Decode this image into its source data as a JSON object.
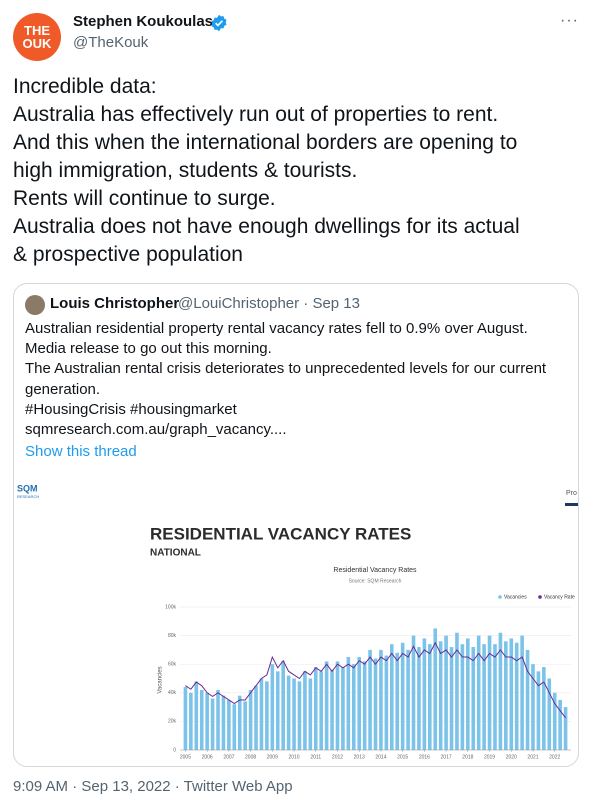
{
  "tweet": {
    "avatar_text": [
      "THE",
      "OUK"
    ],
    "name": "Stephen Koukoulas",
    "handle": "@TheKouk",
    "text_lines": [
      "Incredible data:",
      "Australia has effectively run out of properties to rent.",
      "And this when the international borders are opening to",
      "high immigration, students & tourists.",
      "Rents will continue to surge.",
      "Australia does not have enough dwellings for its actual",
      "& prospective population"
    ],
    "footer": "9:09 AM · Sep 13, 2022 · Twitter Web App"
  },
  "quoted": {
    "name": "Louis Christopher",
    "meta": "@LouiChristopher · Sep 13",
    "text_lines": [
      "Australian residential property rental vacancy rates fell to 0.9% over August.",
      "Media release to go out this morning.",
      "The Australian rental crisis deteriorates to unprecedented levels for our current",
      "generation.",
      "#HousingCrisis #housingmarket",
      "sqmresearch.com.au/graph_vacancy...."
    ],
    "show_thread": "Show this thread"
  },
  "image": {
    "logo": "SQM",
    "logo_sub": "RESEARCH",
    "corner_text": "Pro",
    "heading": "RESIDENTIAL VACANCY RATES",
    "subheading": "NATIONAL"
  },
  "chart_data": {
    "type": "bar-line",
    "title": "Residential Vacancy Rates",
    "subtitle": "Source: SQM Research",
    "y_label": "Vacancies",
    "legend": "top-right",
    "x": [
      2005,
      2005.25,
      2005.5,
      2005.75,
      2006,
      2006.25,
      2006.5,
      2006.75,
      2007,
      2007.25,
      2007.5,
      2007.75,
      2008,
      2008.25,
      2008.5,
      2008.75,
      2009,
      2009.25,
      2009.5,
      2009.75,
      2010,
      2010.25,
      2010.5,
      2010.75,
      2011,
      2011.25,
      2011.5,
      2011.75,
      2012,
      2012.25,
      2012.5,
      2012.75,
      2013,
      2013.25,
      2013.5,
      2013.75,
      2014,
      2014.25,
      2014.5,
      2014.75,
      2015,
      2015.25,
      2015.5,
      2015.75,
      2016,
      2016.25,
      2016.5,
      2016.75,
      2017,
      2017.25,
      2017.5,
      2017.75,
      2018,
      2018.25,
      2018.5,
      2018.75,
      2019,
      2019.25,
      2019.5,
      2019.75,
      2020,
      2020.25,
      2020.5,
      2020.75,
      2021,
      2021.25,
      2021.5,
      2021.75,
      2022,
      2022.25,
      2022.5
    ],
    "xlim": [
      2004.75,
      2022.75
    ],
    "xticks": [
      2005,
      2006,
      2007,
      2008,
      2009,
      2010,
      2011,
      2012,
      2013,
      2014,
      2015,
      2016,
      2017,
      2018,
      2019,
      2020,
      2021,
      2022
    ],
    "ylim": [
      0,
      100000
    ],
    "yticks": [
      0,
      {
        "value": 20000,
        "label": "20k"
      },
      {
        "value": 40000,
        "label": "40k"
      },
      {
        "value": 60000,
        "label": "60k"
      },
      {
        "value": 80000,
        "label": "80k"
      },
      {
        "value": 100000,
        "label": "100k"
      }
    ],
    "y2lim": [
      0,
      4
    ],
    "series": [
      {
        "name": "Vacancies",
        "color": "#7cc3ea",
        "values": [
          44000,
          40000,
          48000,
          42000,
          40000,
          36000,
          42000,
          38000,
          35000,
          32000,
          38000,
          34000,
          42000,
          45000,
          50000,
          48000,
          60000,
          55000,
          62000,
          52000,
          50000,
          48000,
          55000,
          50000,
          58000,
          55000,
          62000,
          56000,
          62000,
          58000,
          65000,
          60000,
          65000,
          62000,
          70000,
          64000,
          70000,
          66000,
          74000,
          68000,
          75000,
          70000,
          80000,
          72000,
          78000,
          74000,
          85000,
          76000,
          80000,
          72000,
          82000,
          74000,
          78000,
          72000,
          80000,
          74000,
          80000,
          74000,
          82000,
          76000,
          78000,
          75000,
          80000,
          70000,
          60000,
          55000,
          58000,
          50000,
          40000,
          35000,
          30000
        ]
      },
      {
        "name": "Vacancy Rate",
        "color": "#6a2c91",
        "axis": "y2",
        "values": [
          1.8,
          1.7,
          1.9,
          1.8,
          1.6,
          1.5,
          1.6,
          1.5,
          1.4,
          1.3,
          1.4,
          1.4,
          1.6,
          1.8,
          2.0,
          2.1,
          2.6,
          2.3,
          2.5,
          2.2,
          2.1,
          2.0,
          2.2,
          2.1,
          2.3,
          2.2,
          2.4,
          2.2,
          2.4,
          2.3,
          2.4,
          2.3,
          2.5,
          2.4,
          2.6,
          2.4,
          2.6,
          2.5,
          2.7,
          2.5,
          2.7,
          2.6,
          2.9,
          2.6,
          2.8,
          2.7,
          3.0,
          2.7,
          2.8,
          2.6,
          2.8,
          2.6,
          2.6,
          2.5,
          2.7,
          2.5,
          2.7,
          2.6,
          2.8,
          2.6,
          2.6,
          2.5,
          2.6,
          2.2,
          2.0,
          1.8,
          1.9,
          1.6,
          1.3,
          1.1,
          0.9
        ]
      }
    ]
  }
}
